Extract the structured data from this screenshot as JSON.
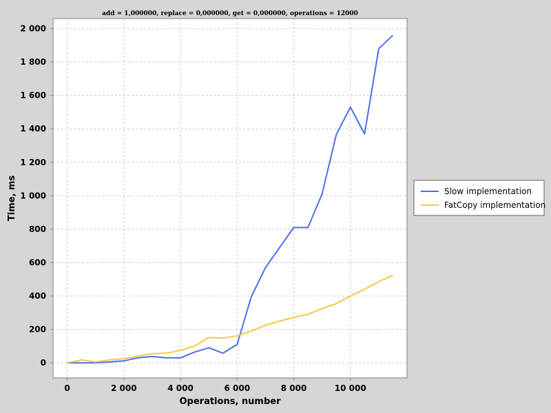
{
  "chart_data": {
    "type": "line",
    "title": "add = 1,000000, replace = 0,000000, get = 0,000000, operations = 12000",
    "xlabel": "Operations, number",
    "ylabel": "Time, ms",
    "xlim": [
      -500,
      12000
    ],
    "ylim": [
      -90,
      2060
    ],
    "x_ticks": [
      0,
      2000,
      4000,
      6000,
      8000,
      10000
    ],
    "x_tick_labels": [
      "0",
      "2 000",
      "4 000",
      "6 000",
      "8 000",
      "10 000"
    ],
    "y_ticks": [
      0,
      200,
      400,
      600,
      800,
      1000,
      1200,
      1400,
      1600,
      1800,
      2000
    ],
    "y_tick_labels": [
      "0",
      "200",
      "400",
      "600",
      "800",
      "1 000",
      "1 200",
      "1 400",
      "1 600",
      "1 800",
      "2 000"
    ],
    "grid": true,
    "legend_position": "right",
    "x": [
      0,
      500,
      1000,
      1500,
      2000,
      2500,
      3000,
      3500,
      4000,
      4500,
      5000,
      5500,
      6000,
      6500,
      7000,
      7500,
      8000,
      8500,
      9000,
      9500,
      10000,
      10500,
      11000,
      11500
    ],
    "series": [
      {
        "name": "Slow implementation",
        "color": "#4a6ee8",
        "values": [
          0,
          0,
          0,
          5,
          12,
          30,
          38,
          30,
          30,
          65,
          90,
          58,
          110,
          395,
          570,
          690,
          810,
          810,
          1010,
          1365,
          1530,
          1370,
          1880,
          1960
        ]
      },
      {
        "name": "FatCopy implementation",
        "color": "#ffc445",
        "values": [
          0,
          18,
          5,
          18,
          25,
          40,
          55,
          58,
          75,
          100,
          152,
          148,
          162,
          190,
          225,
          250,
          272,
          290,
          325,
          355,
          400,
          440,
          485,
          525
        ]
      }
    ]
  }
}
